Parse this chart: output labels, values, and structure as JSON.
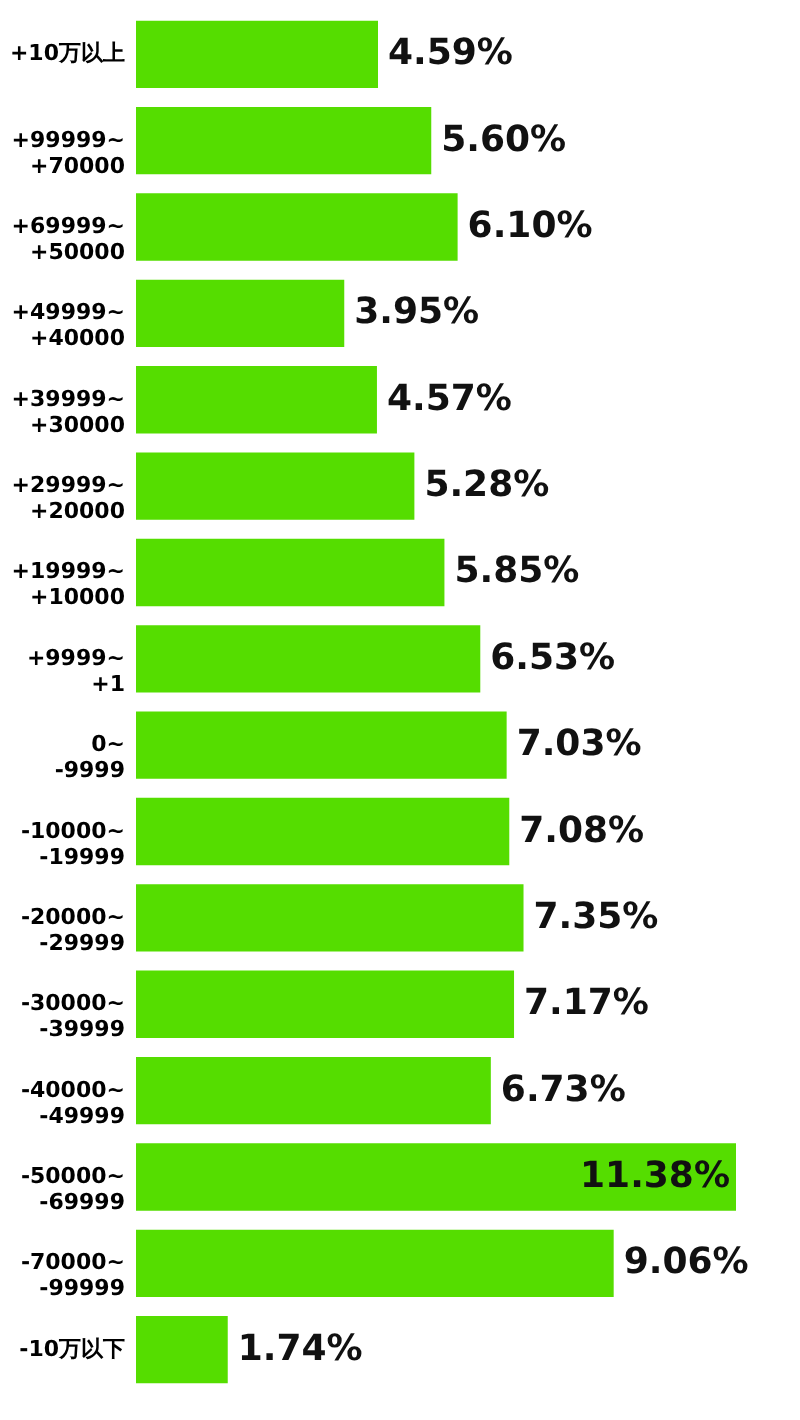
{
  "chart_data": {
    "type": "bar",
    "orientation": "horizontal",
    "categories": [
      "+10万以上",
      "+99999~\n+70000",
      "+69999~\n+50000",
      "+49999~\n+40000",
      "+39999~\n+30000",
      "+29999~\n+20000",
      "+19999~\n+10000",
      "+9999~\n+1",
      "0~\n-9999",
      "-10000~\n-19999",
      "-20000~\n-29999",
      "-30000~\n-39999",
      "-40000~\n-49999",
      "-50000~\n-69999",
      "-70000~\n-99999",
      "-10万以下"
    ],
    "series": [
      {
        "color": "#55dd00",
        "values": [
          4.59,
          5.6,
          6.1,
          3.95,
          4.57,
          5.28,
          5.85,
          6.53,
          7.03,
          7.08,
          7.35,
          7.17,
          6.73,
          11.38,
          9.06,
          1.74
        ],
        "value_labels": [
          "4.59%",
          "5.60%",
          "6.10%",
          "3.95%",
          "4.57%",
          "5.28%",
          "5.85%",
          "6.53%",
          "7.03%",
          "7.08%",
          "7.35%",
          "7.17%",
          "6.73%",
          "11.38%",
          "9.06%",
          "1.74%"
        ]
      }
    ],
    "grid": false
  }
}
